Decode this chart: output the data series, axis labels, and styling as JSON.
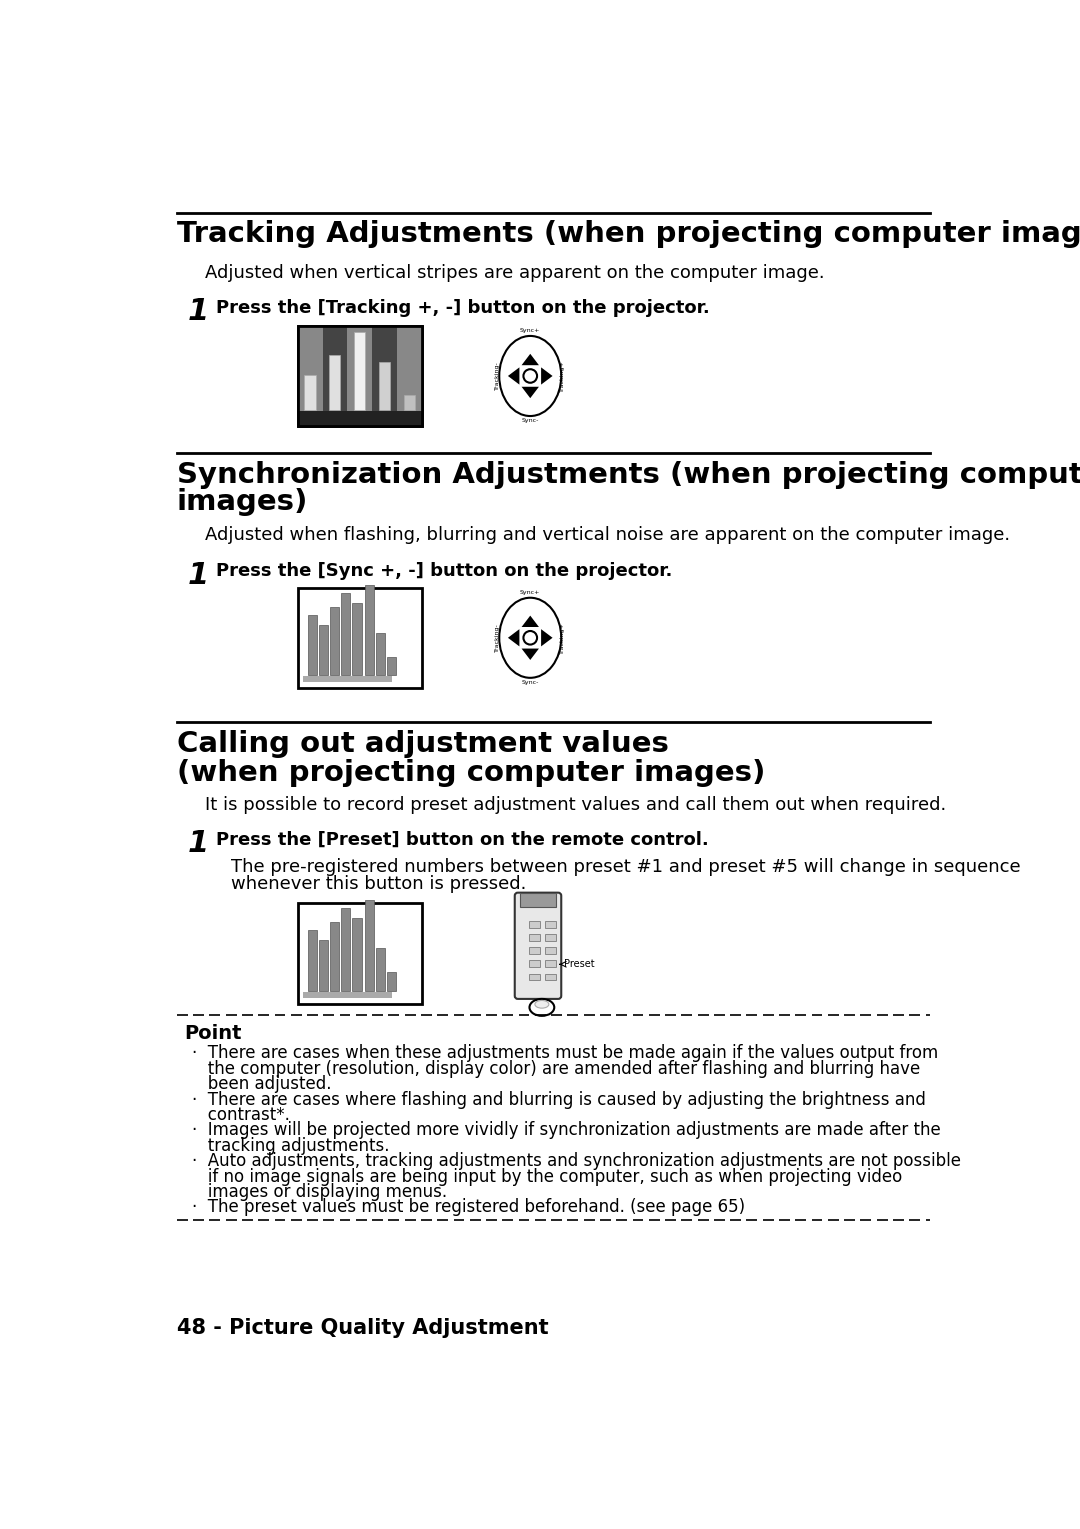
{
  "title1": "Tracking Adjustments (when projecting computer images)",
  "subtitle1": "Adjusted when vertical stripes are apparent on the computer image.",
  "step1_num": "1",
  "step1_text": "Press the [Tracking +, -] button on the projector.",
  "title2_l1": "Synchronization Adjustments (when projecting computer",
  "title2_l2": "images)",
  "subtitle2": "Adjusted when flashing, blurring and vertical noise are apparent on the computer image.",
  "step2_num": "1",
  "step2_text": "Press the [Sync +, -] button on the projector.",
  "title3_l1": "Calling out adjustment values",
  "title3_l2": "(when projecting computer images)",
  "subtitle3": "It is possible to record preset adjustment values and call them out when required.",
  "step3_num": "1",
  "step3_text": "Press the [Preset] button on the remote control.",
  "step3_body_l1": "The pre-registered numbers between preset #1 and preset #5 will change in sequence",
  "step3_body_l2": "whenever this button is pressed.",
  "point_title": "Point",
  "b1_l1": "·  There are cases when these adjustments must be made again if the values output from",
  "b1_l2": "   the computer (resolution, display color) are amended after flashing and blurring have",
  "b1_l3": "   been adjusted.",
  "b2_l1": "·  There are cases where flashing and blurring is caused by adjusting the brightness and",
  "b2_l2": "   contrast*.",
  "b3_l1": "·  Images will be projected more vividly if synchronization adjustments are made after the",
  "b3_l2": "   tracking adjustments.",
  "b4_l1": "·  Auto adjustments, tracking adjustments and synchronization adjustments are not possible",
  "b4_l2": "   if no image signals are being input by the computer, such as when projecting video",
  "b4_l3": "   images or displaying menus.",
  "b5_l1": "·  The preset values must be registered beforehand. (see page 65)",
  "footer": "48 - Picture Quality Adjustment",
  "bg_color": "#ffffff",
  "text_color": "#000000"
}
